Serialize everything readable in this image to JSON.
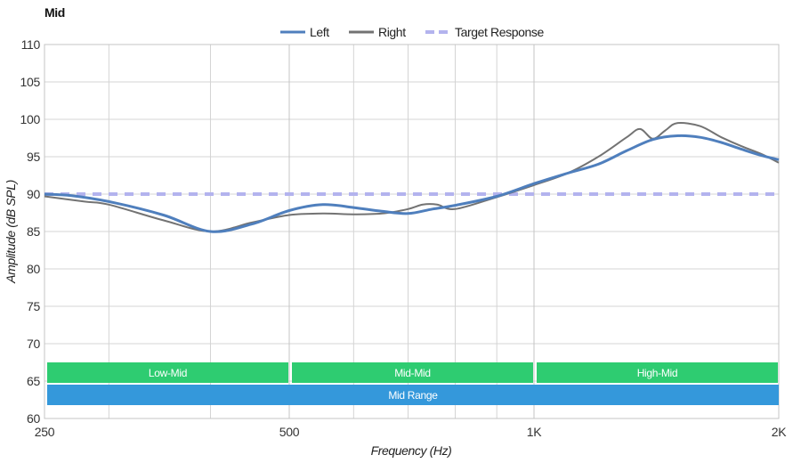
{
  "chart_data": {
    "type": "line",
    "title": "Mid",
    "xlabel": "Frequency (Hz)",
    "ylabel": "Amplitude (dB SPL)",
    "x_scale": "log",
    "xlim": [
      250,
      2000
    ],
    "ylim": [
      60,
      110
    ],
    "yticks": [
      60,
      65,
      70,
      75,
      80,
      85,
      90,
      95,
      100,
      105,
      110
    ],
    "xtick_labels": [
      {
        "value": 250,
        "label": "250"
      },
      {
        "value": 500,
        "label": "500"
      },
      {
        "value": 1000,
        "label": "1K"
      },
      {
        "value": 2000,
        "label": "2K"
      }
    ],
    "minor_gridlines_hz": [
      300,
      400,
      600,
      700,
      800,
      900
    ],
    "grid": true,
    "legend_position": "top-center",
    "series": [
      {
        "name": "Left",
        "color": "#4f7fbd",
        "style": "solid",
        "width": 3,
        "x": [
          250,
          270,
          300,
          350,
          400,
          450,
          500,
          550,
          600,
          650,
          700,
          750,
          800,
          900,
          1000,
          1100,
          1200,
          1300,
          1400,
          1500,
          1600,
          1700,
          1800,
          1900,
          2000
        ],
        "y": [
          90.0,
          89.8,
          89.0,
          87.2,
          85.0,
          86.0,
          87.8,
          88.6,
          88.2,
          87.7,
          87.4,
          88.0,
          88.5,
          89.7,
          91.4,
          92.8,
          94.0,
          95.8,
          97.3,
          97.8,
          97.6,
          96.9,
          96.0,
          95.2,
          94.6
        ]
      },
      {
        "name": "Right",
        "color": "#737373",
        "style": "solid",
        "width": 2,
        "x": [
          250,
          280,
          300,
          350,
          400,
          450,
          500,
          550,
          600,
          650,
          700,
          730,
          760,
          800,
          900,
          1000,
          1100,
          1200,
          1300,
          1350,
          1400,
          1450,
          1500,
          1600,
          1700,
          1800,
          1900,
          2000
        ],
        "y": [
          89.7,
          89.0,
          88.6,
          86.5,
          85.0,
          86.2,
          87.2,
          87.4,
          87.3,
          87.4,
          88.0,
          88.6,
          88.6,
          88.0,
          89.6,
          91.2,
          92.8,
          95.0,
          97.6,
          98.7,
          97.4,
          98.5,
          99.5,
          99.1,
          97.6,
          96.4,
          95.4,
          94.2
        ]
      },
      {
        "name": "Target Response",
        "color": "#b3b3ee",
        "style": "dashed",
        "width": 4,
        "x": [
          250,
          2000
        ],
        "y": [
          90,
          90
        ]
      }
    ],
    "range_bands": [
      {
        "label": "Low-Mid",
        "from": 250,
        "to": 500,
        "row": 0,
        "color": "#2ecc71"
      },
      {
        "label": "Mid-Mid",
        "from": 500,
        "to": 1000,
        "row": 0,
        "color": "#2ecc71"
      },
      {
        "label": "High-Mid",
        "from": 1000,
        "to": 2000,
        "row": 0,
        "color": "#2ecc71"
      },
      {
        "label": "Mid Range",
        "from": 250,
        "to": 2000,
        "row": 1,
        "color": "#3498db"
      }
    ]
  }
}
